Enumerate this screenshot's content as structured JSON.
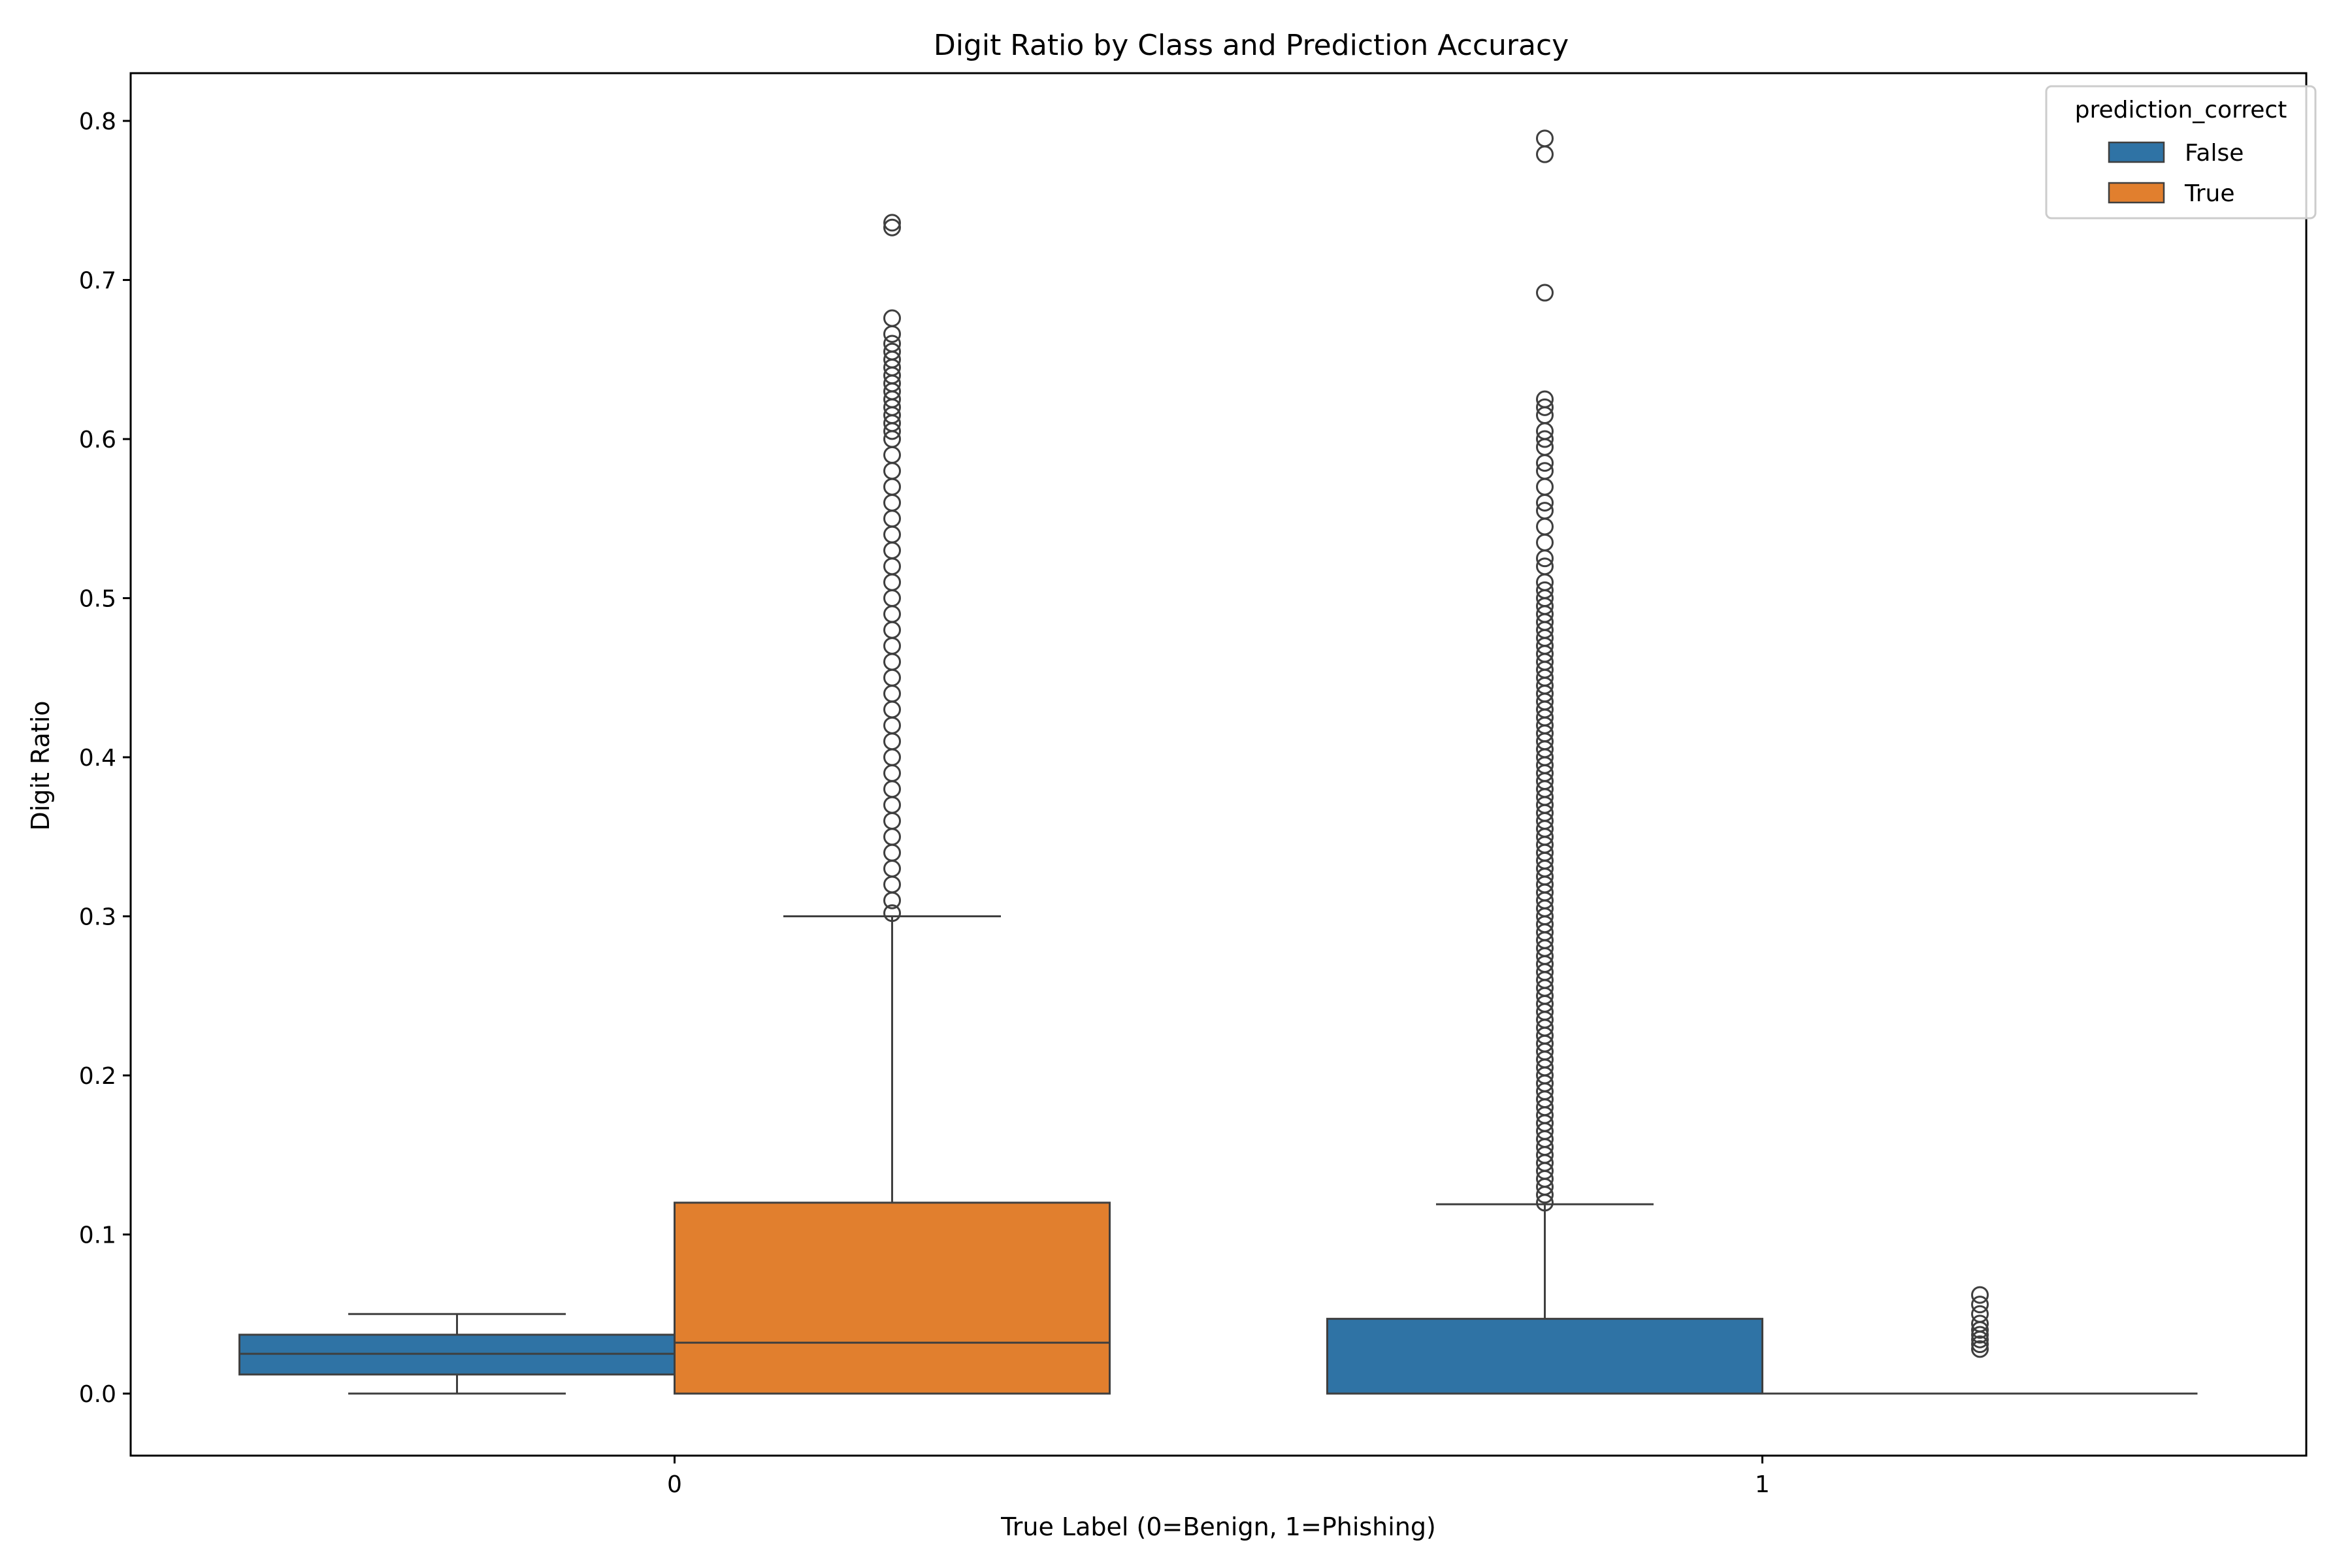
{
  "chart_data": {
    "type": "box",
    "title": "Digit Ratio by Class and Prediction Accuracy",
    "xlabel": "True Label (0=Benign, 1=Phishing)",
    "ylabel": "Digit Ratio",
    "ylim": [
      -0.039,
      0.83
    ],
    "yticks": [
      0.0,
      0.1,
      0.2,
      0.3,
      0.4,
      0.5,
      0.6,
      0.7,
      0.8
    ],
    "ytick_labels": [
      "0.0",
      "0.1",
      "0.2",
      "0.3",
      "0.4",
      "0.5",
      "0.6",
      "0.7",
      "0.8"
    ],
    "categories": [
      "0",
      "1"
    ],
    "grid": false,
    "legend": {
      "title": "prediction_correct",
      "position": "top-right",
      "entries": [
        {
          "label": "False",
          "color": "#2f73a5"
        },
        {
          "label": "True",
          "color": "#e17f2e"
        }
      ]
    },
    "series": [
      {
        "name": "False",
        "color": "#2f73a5",
        "boxes": [
          {
            "category": "0",
            "whisker_low": 0.0,
            "q1": 0.012,
            "median": 0.025,
            "q3": 0.037,
            "whisker_high": 0.05,
            "outliers": []
          },
          {
            "category": "1",
            "whisker_low": 0.0,
            "q1": 0.0,
            "median": 0.0,
            "q3": 0.047,
            "whisker_high": 0.119,
            "outliers": [
              0.12,
              0.125,
              0.13,
              0.135,
              0.14,
              0.145,
              0.15,
              0.155,
              0.16,
              0.165,
              0.17,
              0.175,
              0.18,
              0.185,
              0.19,
              0.195,
              0.2,
              0.205,
              0.21,
              0.215,
              0.22,
              0.225,
              0.23,
              0.235,
              0.24,
              0.245,
              0.25,
              0.255,
              0.26,
              0.265,
              0.27,
              0.275,
              0.28,
              0.285,
              0.29,
              0.295,
              0.3,
              0.305,
              0.31,
              0.315,
              0.32,
              0.325,
              0.33,
              0.335,
              0.34,
              0.345,
              0.35,
              0.355,
              0.36,
              0.365,
              0.37,
              0.375,
              0.38,
              0.385,
              0.39,
              0.395,
              0.4,
              0.405,
              0.41,
              0.415,
              0.42,
              0.425,
              0.43,
              0.435,
              0.44,
              0.445,
              0.45,
              0.455,
              0.46,
              0.465,
              0.47,
              0.475,
              0.48,
              0.485,
              0.49,
              0.495,
              0.5,
              0.505,
              0.51,
              0.52,
              0.525,
              0.535,
              0.545,
              0.555,
              0.56,
              0.57,
              0.58,
              0.585,
              0.595,
              0.6,
              0.605,
              0.615,
              0.62,
              0.625,
              0.692,
              0.779,
              0.789
            ]
          }
        ]
      },
      {
        "name": "True",
        "color": "#e17f2e",
        "boxes": [
          {
            "category": "0",
            "whisker_low": 0.0,
            "q1": 0.0,
            "median": 0.032,
            "q3": 0.12,
            "whisker_high": 0.3,
            "outliers": [
              0.302,
              0.31,
              0.32,
              0.33,
              0.34,
              0.35,
              0.36,
              0.37,
              0.38,
              0.39,
              0.4,
              0.41,
              0.42,
              0.43,
              0.44,
              0.45,
              0.46,
              0.47,
              0.48,
              0.49,
              0.5,
              0.51,
              0.52,
              0.53,
              0.54,
              0.55,
              0.56,
              0.57,
              0.58,
              0.59,
              0.6,
              0.605,
              0.61,
              0.615,
              0.62,
              0.625,
              0.63,
              0.635,
              0.64,
              0.645,
              0.65,
              0.655,
              0.66,
              0.666,
              0.676,
              0.733,
              0.736
            ]
          },
          {
            "category": "1",
            "whisker_low": 0.0,
            "q1": 0.0,
            "median": 0.0,
            "q3": 0.0,
            "whisker_high": 0.0,
            "outliers": [
              0.028,
              0.031,
              0.034,
              0.037,
              0.04,
              0.044,
              0.05,
              0.056,
              0.062
            ]
          }
        ]
      }
    ]
  }
}
